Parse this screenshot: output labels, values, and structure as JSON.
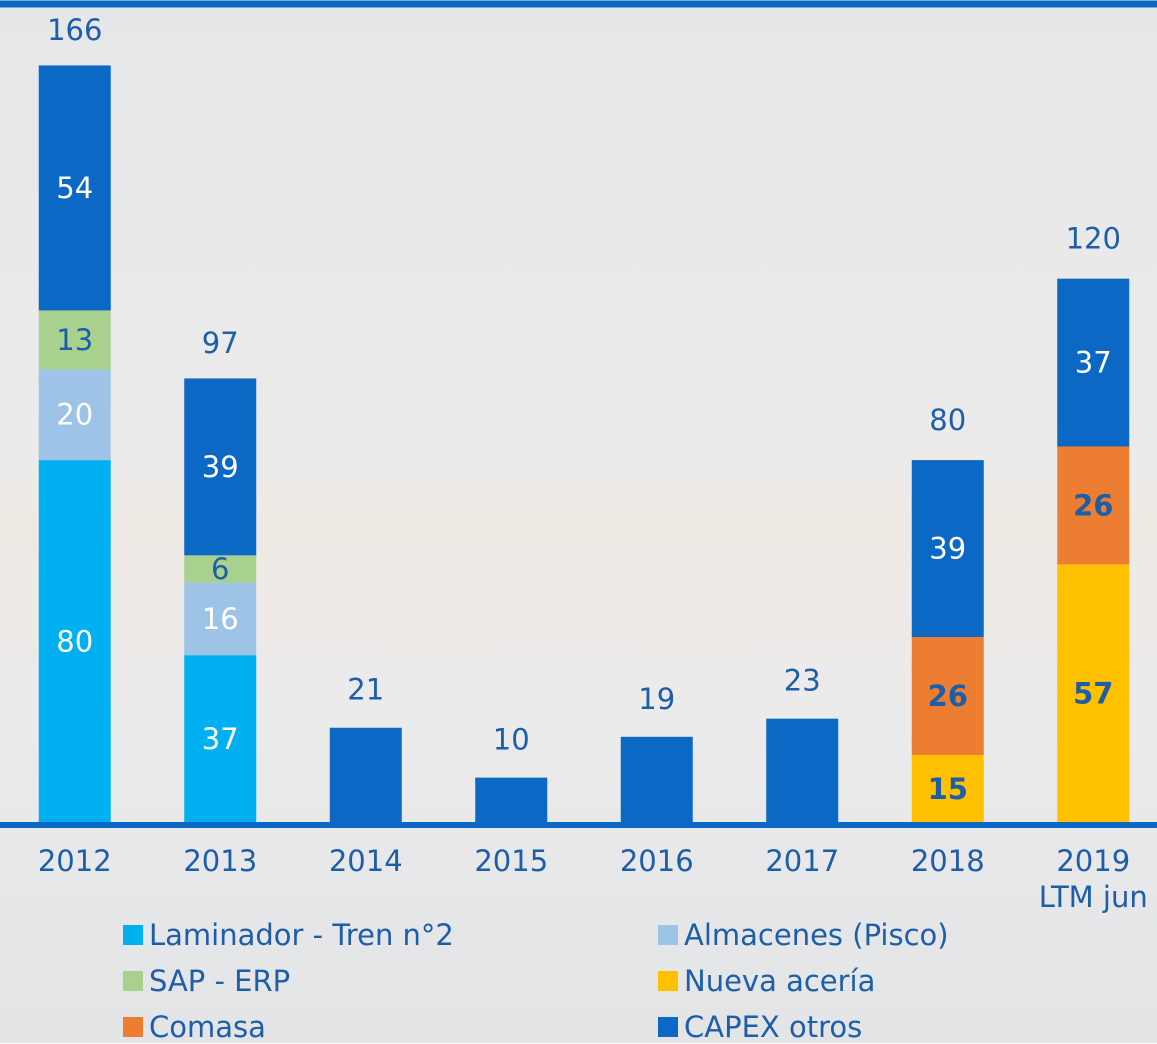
{
  "chart_data": {
    "type": "stacked-bar",
    "categories": [
      "2012",
      "2013",
      "2014",
      "2015",
      "2016",
      "2017",
      "2018",
      "2019\nLTM jun"
    ],
    "series": [
      {
        "name": "Laminador - Tren n°2",
        "color": "#00b0f0",
        "values": [
          80,
          37,
          null,
          null,
          null,
          null,
          null,
          null
        ]
      },
      {
        "name": "Almacenes (Pisco)",
        "color": "#9dc3e6",
        "values": [
          20,
          16,
          null,
          null,
          null,
          null,
          null,
          null
        ]
      },
      {
        "name": "SAP - ERP",
        "color": "#a9d18e",
        "values": [
          13,
          6,
          null,
          null,
          null,
          null,
          null,
          null
        ]
      },
      {
        "name": "Nueva acería",
        "color": "#ffc000",
        "values": [
          null,
          null,
          null,
          null,
          null,
          null,
          15,
          57
        ]
      },
      {
        "name": "Comasa",
        "color": "#ed7d31",
        "values": [
          null,
          null,
          null,
          null,
          null,
          null,
          26,
          26
        ]
      },
      {
        "name": "CAPEX otros",
        "color": "#0b68c4",
        "values": [
          54,
          39,
          21,
          10,
          19,
          23,
          39,
          37
        ]
      }
    ],
    "totals": [
      166,
      97,
      null,
      null,
      null,
      null,
      80,
      120
    ],
    "ylim": [
      0,
      166
    ]
  }
}
